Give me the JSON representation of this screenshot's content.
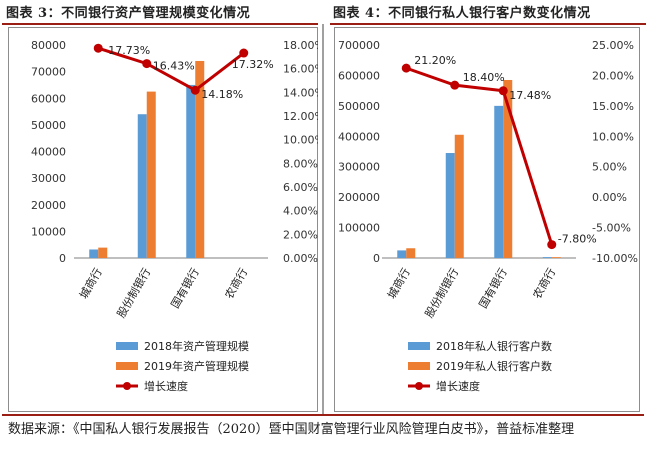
{
  "page": {
    "left_title": "图表 3：不同银行资产管理规模变化情况",
    "right_title": "图表 4：不同银行私人银行客户数变化情况",
    "source_note": "数据来源：《中国私人银行发展报告（2020）暨中国财富管理行业风险管理白皮书》，普益标准整理"
  },
  "colors": {
    "bar2018": "#5b9bd5",
    "bar2019": "#ed7d31",
    "line": "#c00000",
    "axis": "#7f7f7f",
    "title_rule": "#9a1e14"
  },
  "chart_data": [
    {
      "type": "bar",
      "title": "图表 3：不同银行资产管理规模变化情况",
      "categories": [
        "城商行",
        "股份制银行",
        "国有银行",
        "农商行"
      ],
      "series": [
        {
          "name": "2018年资产管理规模",
          "values": [
            3200,
            54000,
            65000,
            0
          ],
          "color": "#5b9bd5"
        },
        {
          "name": "2019年资产管理规模",
          "values": [
            3900,
            62500,
            74000,
            0
          ],
          "color": "#ed7d31"
        }
      ],
      "ylim": [
        0,
        80000
      ],
      "yticks": [
        "0",
        "10000",
        "20000",
        "30000",
        "40000",
        "50000",
        "60000",
        "70000",
        "80000"
      ],
      "line_series": {
        "name": "增长速度",
        "values": [
          17.73,
          16.43,
          14.18,
          17.32
        ],
        "labels": [
          "17.73%",
          "16.43%",
          "14.18%",
          "17.32%"
        ],
        "color": "#c00000"
      },
      "y2lim": [
        0,
        18
      ],
      "y2ticks": [
        "0.00%",
        "2.00%",
        "4.00%",
        "6.00%",
        "8.00%",
        "10.00%",
        "12.00%",
        "14.00%",
        "16.00%",
        "18.00%"
      ],
      "legend": [
        "2018年资产管理规模",
        "2019年资产管理规模",
        "增长速度"
      ]
    },
    {
      "type": "bar",
      "title": "图表 4：不同银行私人银行客户数变化情况",
      "categories": [
        "城商行",
        "股份制银行",
        "国有银行",
        "农商行"
      ],
      "series": [
        {
          "name": "2018年私人银行客户数",
          "values": [
            25000,
            345000,
            500000,
            3000
          ],
          "color": "#5b9bd5"
        },
        {
          "name": "2019年私人银行客户数",
          "values": [
            32000,
            405000,
            585000,
            2800
          ],
          "color": "#ed7d31"
        }
      ],
      "ylim": [
        0,
        700000
      ],
      "yticks": [
        "0",
        "100000",
        "200000",
        "300000",
        "400000",
        "500000",
        "600000",
        "700000"
      ],
      "line_series": {
        "name": "增长速度",
        "values": [
          21.2,
          18.4,
          17.48,
          -7.8
        ],
        "labels": [
          "21.20%",
          "18.40%",
          "17.48%",
          "-7.80%"
        ],
        "color": "#c00000"
      },
      "y2lim": [
        -10,
        25
      ],
      "y2ticks": [
        "-10.00%",
        "-5.00%",
        "0.00%",
        "5.00%",
        "10.00%",
        "15.00%",
        "20.00%",
        "25.00%"
      ],
      "legend": [
        "2018年私人银行客户数",
        "2019年私人银行客户数",
        "增长速度"
      ]
    }
  ]
}
